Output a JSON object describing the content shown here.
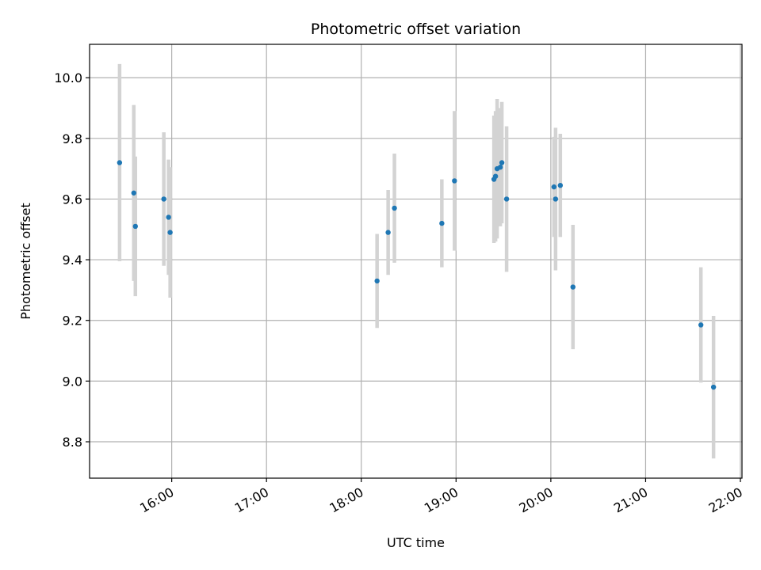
{
  "chart_data": {
    "type": "scatter",
    "title": "Photometric offset variation",
    "xlabel": "UTC time",
    "ylabel": "Photometric offset",
    "x_ticks": [
      "16:00",
      "17:00",
      "18:00",
      "19:00",
      "20:00",
      "21:00",
      "22:00"
    ],
    "y_ticks": [
      "8.8",
      "9.0",
      "9.2",
      "9.4",
      "9.6",
      "9.8",
      "10.0"
    ],
    "xlim": [
      "15:08",
      "22:01"
    ],
    "ylim": [
      8.68,
      10.11
    ],
    "grid": true,
    "colors": {
      "points": "#1f77b4",
      "errorbars": "#d3d3d3",
      "grid": "#b0b0b0"
    },
    "series": [
      {
        "points": [
          {
            "x": "15:27",
            "y": 9.72,
            "yerr": 0.325
          },
          {
            "x": "15:36",
            "y": 9.62,
            "yerr": 0.29
          },
          {
            "x": "15:37",
            "y": 9.51,
            "yerr": 0.23
          },
          {
            "x": "15:55",
            "y": 9.6,
            "yerr": 0.22
          },
          {
            "x": "15:58",
            "y": 9.54,
            "yerr": 0.19
          },
          {
            "x": "15:59",
            "y": 9.49,
            "yerr": 0.215
          },
          {
            "x": "18:10",
            "y": 9.33,
            "yerr": 0.155
          },
          {
            "x": "18:17",
            "y": 9.49,
            "yerr": 0.14
          },
          {
            "x": "18:21",
            "y": 9.57,
            "yerr": 0.18
          },
          {
            "x": "18:51",
            "y": 9.52,
            "yerr": 0.145
          },
          {
            "x": "18:59",
            "y": 9.66,
            "yerr": 0.23
          },
          {
            "x": "19:24",
            "y": 9.665,
            "yerr": 0.21
          },
          {
            "x": "19:25",
            "y": 9.675,
            "yerr": 0.215
          },
          {
            "x": "19:26",
            "y": 9.7,
            "yerr": 0.23
          },
          {
            "x": "19:28",
            "y": 9.705,
            "yerr": 0.195
          },
          {
            "x": "19:29",
            "y": 9.72,
            "yerr": 0.2
          },
          {
            "x": "19:32",
            "y": 9.6,
            "yerr": 0.24
          },
          {
            "x": "20:02",
            "y": 9.64,
            "yerr": 0.165
          },
          {
            "x": "20:03",
            "y": 9.6,
            "yerr": 0.235
          },
          {
            "x": "20:06",
            "y": 9.645,
            "yerr": 0.17
          },
          {
            "x": "20:14",
            "y": 9.31,
            "yerr": 0.205
          },
          {
            "x": "21:35",
            "y": 9.185,
            "yerr": 0.19
          },
          {
            "x": "21:43",
            "y": 8.98,
            "yerr": 0.235
          }
        ]
      }
    ]
  }
}
